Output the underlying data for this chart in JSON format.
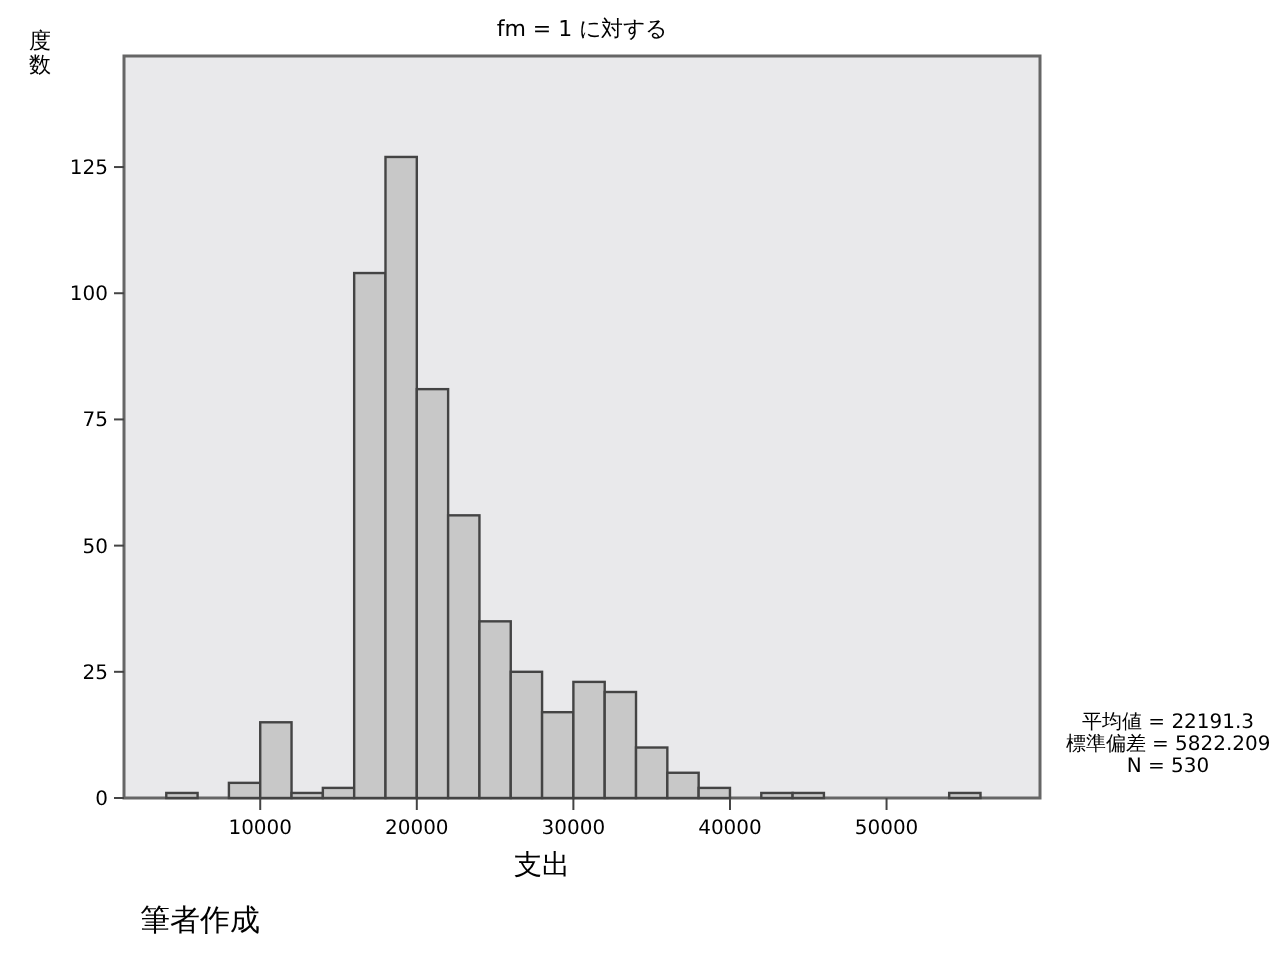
{
  "chart_data": {
    "type": "histogram",
    "title": "fm = 1 に対する",
    "xlabel": "支出",
    "ylabel": "度数",
    "bins": [
      4000,
      6000,
      8000,
      10000,
      12000,
      14000,
      16000,
      18000,
      20000,
      22000,
      24000,
      26000,
      28000,
      30000,
      32000,
      34000,
      36000,
      38000,
      40000,
      42000,
      44000,
      46000,
      48000,
      50000,
      52000,
      54000,
      56000
    ],
    "values": [
      1,
      0,
      3,
      15,
      1,
      2,
      104,
      127,
      81,
      56,
      35,
      25,
      17,
      23,
      21,
      10,
      5,
      2,
      0,
      1,
      1,
      0,
      0,
      0,
      0,
      1
    ],
    "color": "#c8c8c8",
    "xlim": [
      1300,
      59800
    ],
    "xticks": [
      10000,
      20000,
      30000,
      40000,
      50000
    ],
    "ylim": [
      0,
      147
    ],
    "yticks": [
      0,
      25,
      50,
      75,
      100,
      125
    ],
    "grid": false,
    "annotations": [
      "平均値 = 22191.3",
      "標準偏差 = 5822.209",
      "N = 530",
      "筆者作成"
    ]
  }
}
